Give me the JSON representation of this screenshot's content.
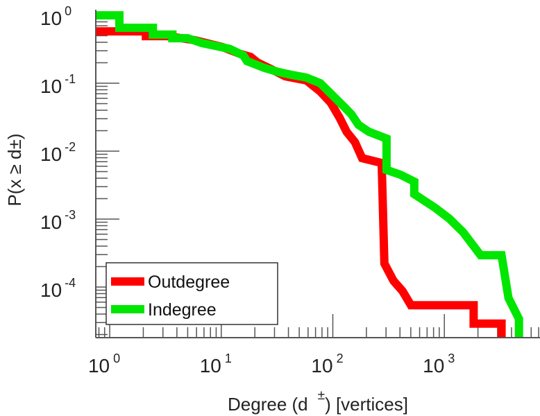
{
  "chart_data": {
    "type": "line",
    "title": "",
    "xlabel": "Degree (d ±) [vertices]",
    "ylabel": "P(x ≥ d±)",
    "xlabel_parts": {
      "pre": "Degree (d",
      "sup": "±",
      "post": ") [vertices]"
    },
    "ylabel_parts": {
      "pre": "P(x ≥ d",
      "sup": "±",
      "post": ")"
    },
    "xscale": "log",
    "yscale": "log",
    "xlim": [
      0.75,
      7200
    ],
    "ylim": [
      1.8e-05,
      1.1
    ],
    "grid": false,
    "legend_position": "bottom-left",
    "x_ticks": [
      {
        "base": "10",
        "exp": "0",
        "value": 1
      },
      {
        "base": "10",
        "exp": "1",
        "value": 10
      },
      {
        "base": "10",
        "exp": "2",
        "value": 100
      },
      {
        "base": "10",
        "exp": "3",
        "value": 1000
      }
    ],
    "y_ticks": [
      {
        "base": "10",
        "exp": "0",
        "value": 1
      },
      {
        "base": "10",
        "exp": "-1",
        "value": 0.1
      },
      {
        "base": "10",
        "exp": "-2",
        "value": 0.01
      },
      {
        "base": "10",
        "exp": "-3",
        "value": 0.001
      },
      {
        "base": "10",
        "exp": "-4",
        "value": 0.0001
      }
    ],
    "series": [
      {
        "name": "Outdegree",
        "color": "#ff0000",
        "points": [
          [
            0.75,
            0.58
          ],
          [
            2.11,
            0.58
          ],
          [
            2.11,
            0.494
          ],
          [
            3.26,
            0.494
          ],
          [
            5.79,
            0.43
          ],
          [
            10.3,
            0.34
          ],
          [
            14.8,
            0.27
          ],
          [
            18.3,
            0.244
          ],
          [
            21.1,
            0.202
          ],
          [
            28.2,
            0.16
          ],
          [
            37.6,
            0.126
          ],
          [
            57.9,
            0.11
          ],
          [
            77.2,
            0.0755
          ],
          [
            95.6,
            0.0518
          ],
          [
            115,
            0.031
          ],
          [
            133,
            0.0193
          ],
          [
            158,
            0.0136
          ],
          [
            183,
            0.0079
          ],
          [
            274,
            0.0067
          ],
          [
            290,
            0.000222
          ],
          [
            350,
            0.000124
          ],
          [
            422,
            8.7e-05
          ],
          [
            501,
            5.4e-05
          ],
          [
            1830,
            5.4e-05
          ],
          [
            1830,
            2.9e-05
          ],
          [
            3254,
            2.9e-05
          ],
          [
            3254,
            1.8e-05
          ]
        ]
      },
      {
        "name": "Indegree",
        "color": "#00e600",
        "points": [
          [
            0.75,
            1.0
          ],
          [
            1.22,
            1.0
          ],
          [
            1.22,
            0.655
          ],
          [
            2.44,
            0.655
          ],
          [
            2.44,
            0.52
          ],
          [
            3.65,
            0.52
          ],
          [
            3.65,
            0.46
          ],
          [
            5.0,
            0.46
          ],
          [
            6.7,
            0.39
          ],
          [
            11.9,
            0.32
          ],
          [
            15.8,
            0.256
          ],
          [
            17.0,
            0.212
          ],
          [
            24.4,
            0.168
          ],
          [
            32.6,
            0.146
          ],
          [
            43.4,
            0.132
          ],
          [
            57.9,
            0.121
          ],
          [
            77.2,
            0.1
          ],
          [
            103,
            0.0625
          ],
          [
            128,
            0.044
          ],
          [
            147,
            0.0348
          ],
          [
            170,
            0.0244
          ],
          [
            211,
            0.0193
          ],
          [
            303,
            0.0153
          ],
          [
            303,
            0.0053
          ],
          [
            404,
            0.0045
          ],
          [
            538,
            0.00356
          ],
          [
            538,
            0.00233
          ],
          [
            829,
            0.00146
          ],
          [
            1106,
            0.00102
          ],
          [
            1475,
            0.00064
          ],
          [
            2113,
            0.000294
          ],
          [
            3254,
            0.000294
          ],
          [
            3758,
            6.9e-05
          ],
          [
            4667,
            3.4e-05
          ],
          [
            4667,
            1.8e-05
          ]
        ]
      }
    ]
  }
}
